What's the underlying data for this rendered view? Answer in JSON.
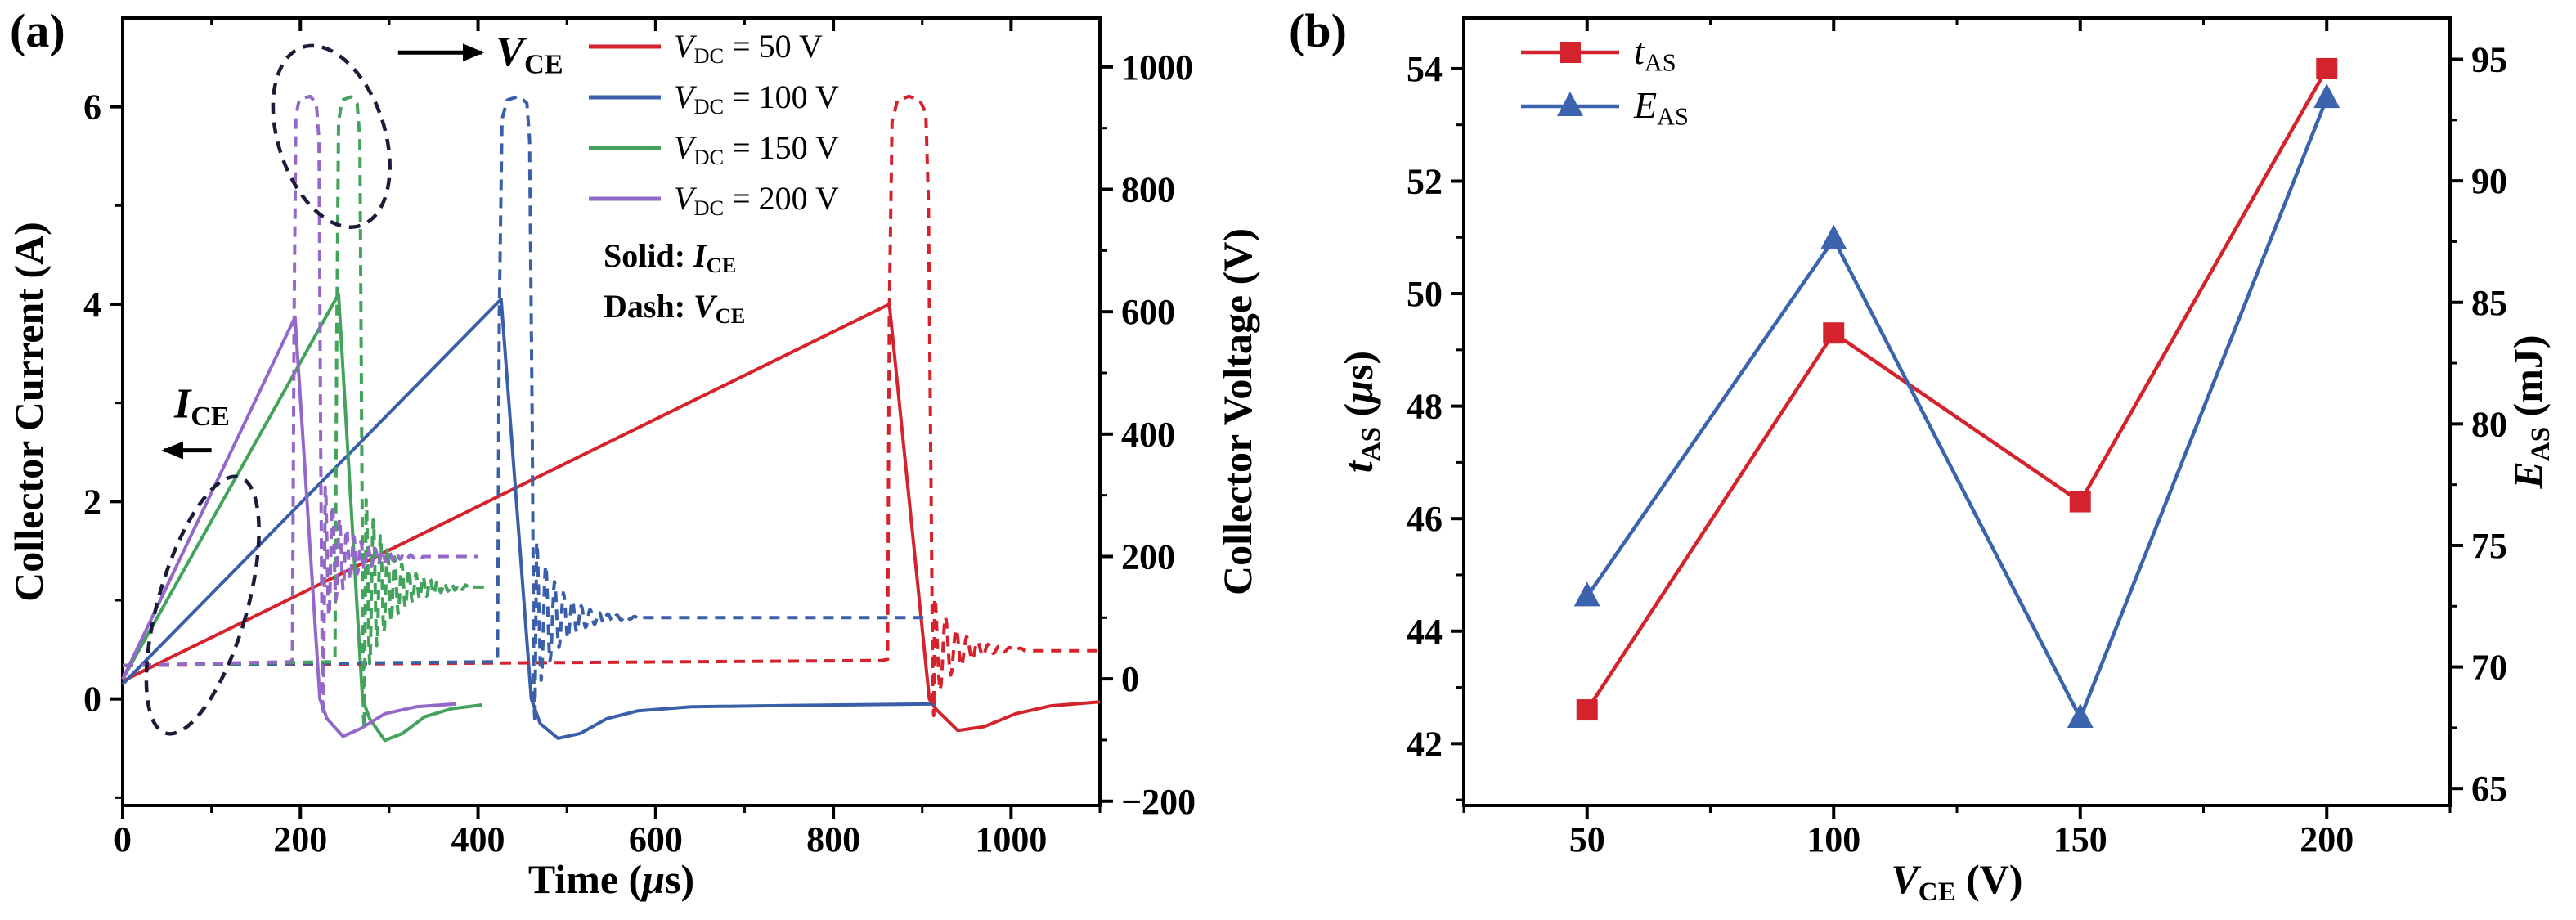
{
  "panels": {
    "a": {
      "label": "(a)"
    },
    "b": {
      "label": "(b)"
    }
  },
  "colors": {
    "red": "#d5232e",
    "blue": "#3a5fa8",
    "green": "#43a35c",
    "purple": "#9468c8",
    "blue2": "#3c63ad",
    "frame": "#000000",
    "annotation": "#1c1c3a"
  },
  "chart_data": [
    {
      "type": "line",
      "panel": "a",
      "xlabel_text": "Time (μs)",
      "xlabel_rich": [
        {
          "t": "Time ("
        },
        {
          "t": "μ",
          "i": 1
        },
        {
          "t": "s)"
        }
      ],
      "ylabel_left": "Collector Current (A)",
      "ylabel_right": "Collector Voltage (V)",
      "xlim": [
        0,
        1100
      ],
      "xticks": [
        0,
        200,
        400,
        600,
        800,
        1000
      ],
      "xminor": 100,
      "ylim_left": [
        -1.08,
        6.9
      ],
      "yticks_left": [
        0,
        2,
        4,
        6
      ],
      "yminor_left": 1,
      "ylim_right": [
        -207,
        1080
      ],
      "yticks_right": [
        -200,
        0,
        200,
        400,
        600,
        800,
        1000
      ],
      "yminor_right": 100,
      "legend": {
        "entries": [
          {
            "color_key": "red",
            "text": "V_DC = 50 V",
            "rich": [
              {
                "t": "V",
                "i": 1
              },
              {
                "t": "DC",
                "sub": 1
              },
              {
                "t": " = 50 V"
              }
            ]
          },
          {
            "color_key": "blue",
            "text": "V_DC = 100 V",
            "rich": [
              {
                "t": "V",
                "i": 1
              },
              {
                "t": "DC",
                "sub": 1
              },
              {
                "t": " = 100 V"
              }
            ]
          },
          {
            "color_key": "green",
            "text": "V_DC = 150 V",
            "rich": [
              {
                "t": "V",
                "i": 1
              },
              {
                "t": "DC",
                "sub": 1
              },
              {
                "t": " = 150 V"
              }
            ]
          },
          {
            "color_key": "purple",
            "text": "V_DC = 200 V",
            "rich": [
              {
                "t": "V",
                "i": 1
              },
              {
                "t": "DC",
                "sub": 1
              },
              {
                "t": " = 200 V"
              }
            ]
          }
        ],
        "notes": [
          {
            "text": "Solid: I_CE",
            "rich": [
              {
                "t": "Solid: ",
                "b": 1
              },
              {
                "t": "I",
                "i": 1,
                "b": 1
              },
              {
                "t": "CE",
                "sub": 1,
                "b": 1
              }
            ]
          },
          {
            "text": "Dash: V_CE",
            "rich": [
              {
                "t": "Dash: ",
                "b": 1
              },
              {
                "t": "V",
                "i": 1,
                "b": 1
              },
              {
                "t": "CE",
                "sub": 1,
                "b": 1
              }
            ]
          }
        ]
      },
      "series": [
        {
          "id": "ICE_50V",
          "axis": "left",
          "style": "solid",
          "color_key": "red",
          "segments": [
            {
              "points": [
                [
                  0,
                  0.18
                ],
                [
                  863,
                  4.0
                ],
                [
                  908,
                  0.0
                ],
                [
                  915,
                  -0.1
                ],
                [
                  940,
                  -0.32
                ],
                [
                  970,
                  -0.28
                ],
                [
                  1005,
                  -0.15
                ],
                [
                  1045,
                  -0.07
                ],
                [
                  1100,
                  -0.03
                ]
              ]
            }
          ]
        },
        {
          "id": "ICE_100V",
          "axis": "left",
          "style": "solid",
          "color_key": "blue",
          "segments": [
            {
              "points": [
                [
                  0,
                  0.15
                ],
                [
                  426,
                  4.05
                ],
                [
                  460,
                  0
                ],
                [
                  470,
                  -0.25
                ],
                [
                  490,
                  -0.4
                ],
                [
                  515,
                  -0.35
                ],
                [
                  545,
                  -0.2
                ],
                [
                  580,
                  -0.12
                ],
                [
                  640,
                  -0.08
                ],
                [
                  720,
                  -0.07
                ],
                [
                  820,
                  -0.06
                ],
                [
                  915,
                  -0.05
                ]
              ]
            }
          ]
        },
        {
          "id": "ICE_150V",
          "axis": "left",
          "style": "solid",
          "color_key": "green",
          "segments": [
            {
              "points": [
                [
                  0,
                  0.2
                ],
                [
                  243,
                  4.1
                ],
                [
                  270,
                  0
                ],
                [
                  278,
                  -0.2
                ],
                [
                  295,
                  -0.42
                ],
                [
                  315,
                  -0.35
                ],
                [
                  340,
                  -0.18
                ],
                [
                  370,
                  -0.1
                ],
                [
                  405,
                  -0.06
                ]
              ]
            }
          ]
        },
        {
          "id": "ICE_200V",
          "axis": "left",
          "style": "solid",
          "color_key": "purple",
          "segments": [
            {
              "points": [
                [
                  0,
                  0.2
                ],
                [
                  194,
                  3.87
                ],
                [
                  222,
                  0
                ],
                [
                  230,
                  -0.2
                ],
                [
                  248,
                  -0.38
                ],
                [
                  268,
                  -0.3
                ],
                [
                  295,
                  -0.15
                ],
                [
                  330,
                  -0.08
                ],
                [
                  375,
                  -0.05
                ]
              ]
            }
          ]
        },
        {
          "id": "VCE_50V",
          "axis": "right",
          "style": "dash",
          "color_key": "red",
          "segments": [
            {
              "points": [
                [
                  0,
                  22
                ],
                [
                  855,
                  30
                ],
                [
                  861,
                  32
                ],
                [
                  863,
                  600
                ],
                [
                  866,
                  910
                ],
                [
                  872,
                  945
                ],
                [
                  885,
                  952
                ],
                [
                  897,
                  946
                ],
                [
                  904,
                  925
                ],
                [
                  907,
                  780
                ],
                [
                  910,
                  300
                ],
                [
                  912,
                  -40
                ],
                [
                  913,
                  -60
                ]
              ]
            },
            {
              "ring": {
                "t0": 914,
                "t1": 1015,
                "center": 48,
                "amp": 85,
                "period": 12,
                "decay": 26,
                "phase": 1.4
              }
            },
            {
              "points": [
                [
                  1015,
                  46
                ],
                [
                  1100,
                  46
                ]
              ]
            }
          ]
        },
        {
          "id": "VCE_100V",
          "axis": "right",
          "style": "dash",
          "color_key": "blue",
          "segments": [
            {
              "points": [
                [
                  0,
                  22
                ],
                [
                  418,
                  28
                ],
                [
                  422,
                  30
                ],
                [
                  424,
                  600
                ],
                [
                  427,
                  915
                ],
                [
                  433,
                  946
                ],
                [
                  446,
                  952
                ],
                [
                  455,
                  941
                ],
                [
                  458,
                  880
                ],
                [
                  461,
                  420
                ],
                [
                  463,
                  -40
                ],
                [
                  464,
                  -70
                ]
              ]
            },
            {
              "ring": {
                "t0": 466,
                "t1": 585,
                "center": 100,
                "amp": 125,
                "period": 10,
                "decay": 27,
                "phase": 1.4
              }
            },
            {
              "points": [
                [
                  585,
                  100
                ],
                [
                  905,
                  100
                ]
              ]
            }
          ]
        },
        {
          "id": "VCE_150V",
          "axis": "right",
          "style": "dash",
          "color_key": "green",
          "segments": [
            {
              "points": [
                [
                  0,
                  22
                ],
                [
                  236,
                  28
                ],
                [
                  239,
                  30
                ],
                [
                  241,
                  550
                ],
                [
                  243,
                  910
                ],
                [
                  247,
                  946
                ],
                [
                  257,
                  951
                ],
                [
                  264,
                  940
                ],
                [
                  267,
                  880
                ],
                [
                  269,
                  420
                ],
                [
                  271,
                  -60
                ],
                [
                  272,
                  -80
                ]
              ]
            },
            {
              "ring": {
                "t0": 274,
                "t1": 392,
                "center": 150,
                "amp": 145,
                "period": 8,
                "decay": 30,
                "phase": 1.4
              }
            },
            {
              "points": [
                [
                  392,
                  150
                ],
                [
                  408,
                  150
                ]
              ]
            }
          ]
        },
        {
          "id": "VCE_200V",
          "axis": "right",
          "style": "dash",
          "color_key": "purple",
          "segments": [
            {
              "points": [
                [
                  0,
                  22
                ],
                [
                  188,
                  28
                ],
                [
                  191,
                  30
                ],
                [
                  193,
                  600
                ],
                [
                  195,
                  920
                ],
                [
                  199,
                  948
                ],
                [
                  211,
                  952
                ],
                [
                  218,
                  941
                ],
                [
                  221,
                  880
                ],
                [
                  223,
                  350
                ],
                [
                  225,
                  -40
                ],
                [
                  226,
                  -60
                ]
              ]
            },
            {
              "ring": {
                "t0": 228,
                "t1": 338,
                "center": 200,
                "amp": 115,
                "period": 8,
                "decay": 26,
                "phase": 1.4
              }
            },
            {
              "points": [
                [
                  338,
                  200
                ],
                [
                  400,
                  200
                ]
              ]
            }
          ]
        }
      ],
      "annotations": [
        {
          "type": "ellipse",
          "cx": 235,
          "cy": 5.7,
          "rx": 60,
          "ry": 0.95,
          "rot": -18
        },
        {
          "type": "arrow",
          "x1": 310,
          "y1": 6.55,
          "x2": 405,
          "y2": 6.55
        },
        {
          "type": "rich_text",
          "x": 420,
          "y": 6.42,
          "size": 52,
          "anchor": "start",
          "text": "V_CE",
          "rich": [
            {
              "t": "V",
              "i": 1,
              "b": 1
            },
            {
              "t": "CE",
              "sub": 1,
              "b": 1
            }
          ]
        },
        {
          "type": "ellipse",
          "cx": 90,
          "cy": 0.95,
          "rx": 50,
          "ry": 1.35,
          "rot": 16
        },
        {
          "type": "arrow",
          "x1": 100,
          "y1": 2.52,
          "x2": 46,
          "y2": 2.52
        },
        {
          "type": "rich_text",
          "x": 58,
          "y": 2.85,
          "size": 52,
          "anchor": "start",
          "text": "I_CE",
          "rich": [
            {
              "t": "I",
              "i": 1,
              "b": 1
            },
            {
              "t": "CE",
              "sub": 1,
              "b": 1
            }
          ]
        }
      ]
    },
    {
      "type": "line",
      "panel": "b",
      "xlabel_text": "V_CE (V)",
      "xlabel_rich": [
        {
          "t": "V",
          "i": 1
        },
        {
          "t": "CE",
          "sub": 1
        },
        {
          "t": " (V)"
        }
      ],
      "ylabel_left_text": "t_AS (μs)",
      "ylabel_left_rich": [
        {
          "t": "t",
          "i": 1
        },
        {
          "t": "AS",
          "sub": 1
        },
        {
          "t": " ("
        },
        {
          "t": "μ",
          "i": 1
        },
        {
          "t": "s)"
        }
      ],
      "ylabel_right_text": "E_AS (mJ)",
      "ylabel_right_rich": [
        {
          "t": "E",
          "i": 1
        },
        {
          "t": "AS",
          "sub": 1
        },
        {
          "t": " (mJ)"
        }
      ],
      "xlim": [
        25,
        225
      ],
      "xticks": [
        50,
        100,
        150,
        200
      ],
      "xminor": 25,
      "ylim_left": [
        40.9,
        54.9
      ],
      "yticks_left": [
        42,
        44,
        46,
        48,
        50,
        52,
        54
      ],
      "yminor_left": 1,
      "ylim_right": [
        64.3,
        96.7
      ],
      "yticks_right": [
        65,
        70,
        75,
        80,
        85,
        90,
        95
      ],
      "yminor_right": 2.5,
      "legend": {
        "entries": [
          {
            "color_key": "red",
            "marker": "square",
            "text": "t_AS",
            "rich": [
              {
                "t": "t",
                "i": 1
              },
              {
                "t": "AS",
                "sub": 1
              }
            ]
          },
          {
            "color_key": "blue2",
            "marker": "triangle",
            "text": "E_AS",
            "rich": [
              {
                "t": "E",
                "i": 1
              },
              {
                "t": "AS",
                "sub": 1
              }
            ]
          }
        ]
      },
      "series": [
        {
          "id": "t_AS",
          "axis": "left",
          "color_key": "red",
          "marker": "square",
          "x": [
            50,
            100,
            150,
            200
          ],
          "y": [
            42.6,
            49.3,
            46.3,
            54.0
          ]
        },
        {
          "id": "E_AS",
          "axis": "right",
          "color_key": "blue2",
          "marker": "triangle",
          "x": [
            50,
            100,
            150,
            200
          ],
          "y": [
            72.9,
            87.6,
            67.9,
            93.4
          ]
        }
      ]
    }
  ]
}
